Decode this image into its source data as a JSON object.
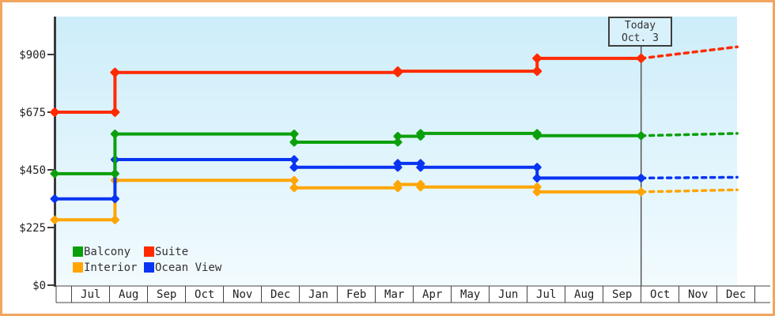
{
  "frame": {
    "border_color": "#F2A55E",
    "plot_bg_top": "#CDEDFA",
    "plot_bg_bottom": "#F2FBFE",
    "axis_color": "#3B3B3B",
    "text_color": "#222222"
  },
  "chart_data": {
    "type": "line",
    "step": true,
    "grid": false,
    "title": "",
    "ylim": [
      0,
      1050
    ],
    "y_ticks": [
      {
        "label": "$0",
        "value": 0
      },
      {
        "label": "$225",
        "value": 225
      },
      {
        "label": "$450",
        "value": 450
      },
      {
        "label": "$675",
        "value": 675
      },
      {
        "label": "$900",
        "value": 900
      }
    ],
    "x_axis_months": [
      "Jul",
      "Aug",
      "Sep",
      "Oct",
      "Nov",
      "Dec",
      "Jan",
      "Feb",
      "Mar",
      "Apr",
      "May",
      "Jun",
      "Jul",
      "Aug",
      "Sep",
      "Oct",
      "Nov",
      "Dec"
    ],
    "today_label": "Today",
    "today_date": "Oct. 3",
    "today_month_index": 15.0,
    "series": [
      {
        "name": "Interior",
        "color": "#FFA504",
        "points": [
          [
            -0.45,
            255
          ],
          [
            1.14,
            255
          ],
          [
            1.14,
            409
          ],
          [
            5.86,
            409
          ],
          [
            5.86,
            380
          ],
          [
            8.59,
            380
          ],
          [
            8.59,
            393
          ],
          [
            9.19,
            393
          ],
          [
            9.19,
            383
          ],
          [
            12.26,
            383
          ],
          [
            12.26,
            364
          ],
          [
            15.0,
            364
          ]
        ],
        "projection": [
          [
            15.0,
            364
          ],
          [
            17.53,
            372
          ]
        ]
      },
      {
        "name": "Ocean View",
        "color": "#0834F2",
        "points": [
          [
            -0.45,
            337
          ],
          [
            1.14,
            337
          ],
          [
            1.14,
            490
          ],
          [
            5.86,
            490
          ],
          [
            5.86,
            460
          ],
          [
            8.59,
            460
          ],
          [
            8.59,
            475
          ],
          [
            9.19,
            475
          ],
          [
            9.19,
            460
          ],
          [
            12.26,
            460
          ],
          [
            12.26,
            418
          ],
          [
            15.0,
            418
          ]
        ],
        "projection": [
          [
            15.0,
            418
          ],
          [
            17.53,
            421
          ]
        ]
      },
      {
        "name": "Balcony",
        "color": "#0BA00B",
        "points": [
          [
            -0.45,
            435
          ],
          [
            1.14,
            435
          ],
          [
            1.14,
            590
          ],
          [
            5.86,
            590
          ],
          [
            5.86,
            558
          ],
          [
            8.59,
            558
          ],
          [
            8.59,
            581
          ],
          [
            9.19,
            581
          ],
          [
            9.19,
            592
          ],
          [
            12.26,
            592
          ],
          [
            12.26,
            583
          ],
          [
            15.0,
            583
          ]
        ],
        "projection": [
          [
            15.0,
            583
          ],
          [
            17.53,
            592
          ]
        ]
      },
      {
        "name": "Suite",
        "color": "#FF2B00",
        "points": [
          [
            -0.45,
            675
          ],
          [
            1.14,
            675
          ],
          [
            1.14,
            830
          ],
          [
            8.59,
            830
          ],
          [
            8.59,
            835
          ],
          [
            12.26,
            835
          ],
          [
            12.26,
            885
          ],
          [
            15.0,
            885
          ]
        ],
        "projection": [
          [
            15.0,
            885
          ],
          [
            17.53,
            930
          ]
        ]
      }
    ],
    "legend": {
      "position": "bottom-left",
      "order": [
        "Balcony",
        "Suite",
        "Interior",
        "Ocean View"
      ]
    }
  }
}
